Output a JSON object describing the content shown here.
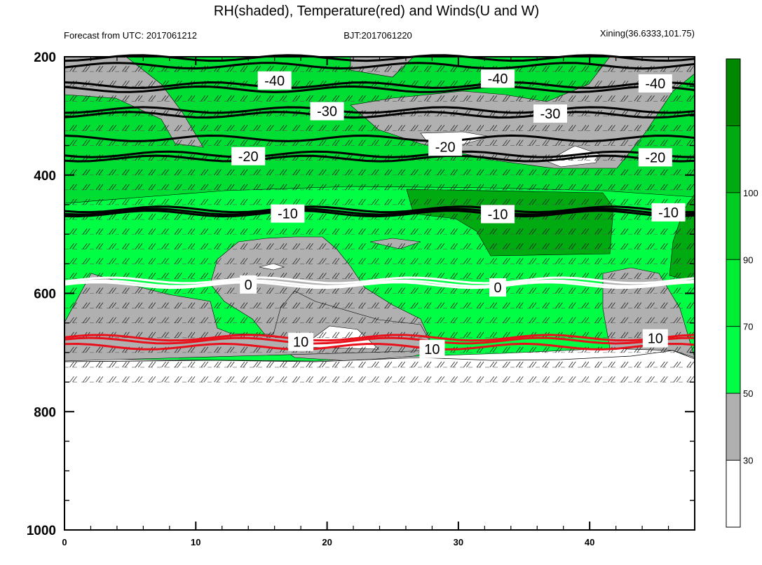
{
  "chart_data": {
    "type": "heatmap",
    "title": "RH(shaded), Temperature(red) and Winds(U and W)",
    "subtitle_left": "Forecast from UTC: 2017061212",
    "subtitle_center": "BJT:2017061220",
    "subtitle_right": "Xining(36.6333,101.75)",
    "x_ticks": [
      "0",
      "10",
      "20",
      "30",
      "40"
    ],
    "xlim": [
      0,
      48
    ],
    "y_ticks": [
      "200",
      "400",
      "600",
      "800",
      "1000"
    ],
    "ylim": [
      200,
      1000
    ],
    "y_reversed": true,
    "colorbar_ticks": [
      "30",
      "50",
      "70",
      "90",
      "100"
    ],
    "colorbar_colors": [
      "#ffffff",
      "#b0b0b0",
      "#00ff44",
      "#00ee33",
      "#00cc22",
      "#00aa11",
      "#008800"
    ],
    "temperature_contours": [
      {
        "label": "-40",
        "values": [
          202,
          215,
          248,
          255
        ]
      },
      {
        "label": "-30",
        "values": [
          290,
          298,
          338
        ]
      },
      {
        "label": "-20",
        "values": [
          372,
          365
        ]
      },
      {
        "label": "-10",
        "values": [
          458,
          462,
          465
        ]
      },
      {
        "label": "0",
        "values": [
          583,
          586,
          578
        ]
      },
      {
        "label": "10",
        "values": [
          675,
          680,
          690
        ]
      }
    ],
    "contour_labels": [
      {
        "text": "-40",
        "x": 16,
        "p": 240
      },
      {
        "text": "-40",
        "x": 33,
        "p": 237
      },
      {
        "text": "-40",
        "x": 45,
        "p": 245
      },
      {
        "text": "-30",
        "x": 20,
        "p": 292
      },
      {
        "text": "-30",
        "x": 37,
        "p": 296
      },
      {
        "text": "-20",
        "x": 14,
        "p": 368
      },
      {
        "text": "-20",
        "x": 29,
        "p": 352
      },
      {
        "text": "-20",
        "x": 45,
        "p": 370
      },
      {
        "text": "-10",
        "x": 17,
        "p": 465
      },
      {
        "text": "-10",
        "x": 33,
        "p": 466
      },
      {
        "text": "-10",
        "x": 46,
        "p": 463
      },
      {
        "text": "0",
        "x": 14,
        "p": 585
      },
      {
        "text": "0",
        "x": 33,
        "p": 590
      },
      {
        "text": "10",
        "x": 18,
        "p": 682
      },
      {
        "text": "10",
        "x": 28,
        "p": 694
      },
      {
        "text": "10",
        "x": 45,
        "p": 676
      }
    ]
  }
}
